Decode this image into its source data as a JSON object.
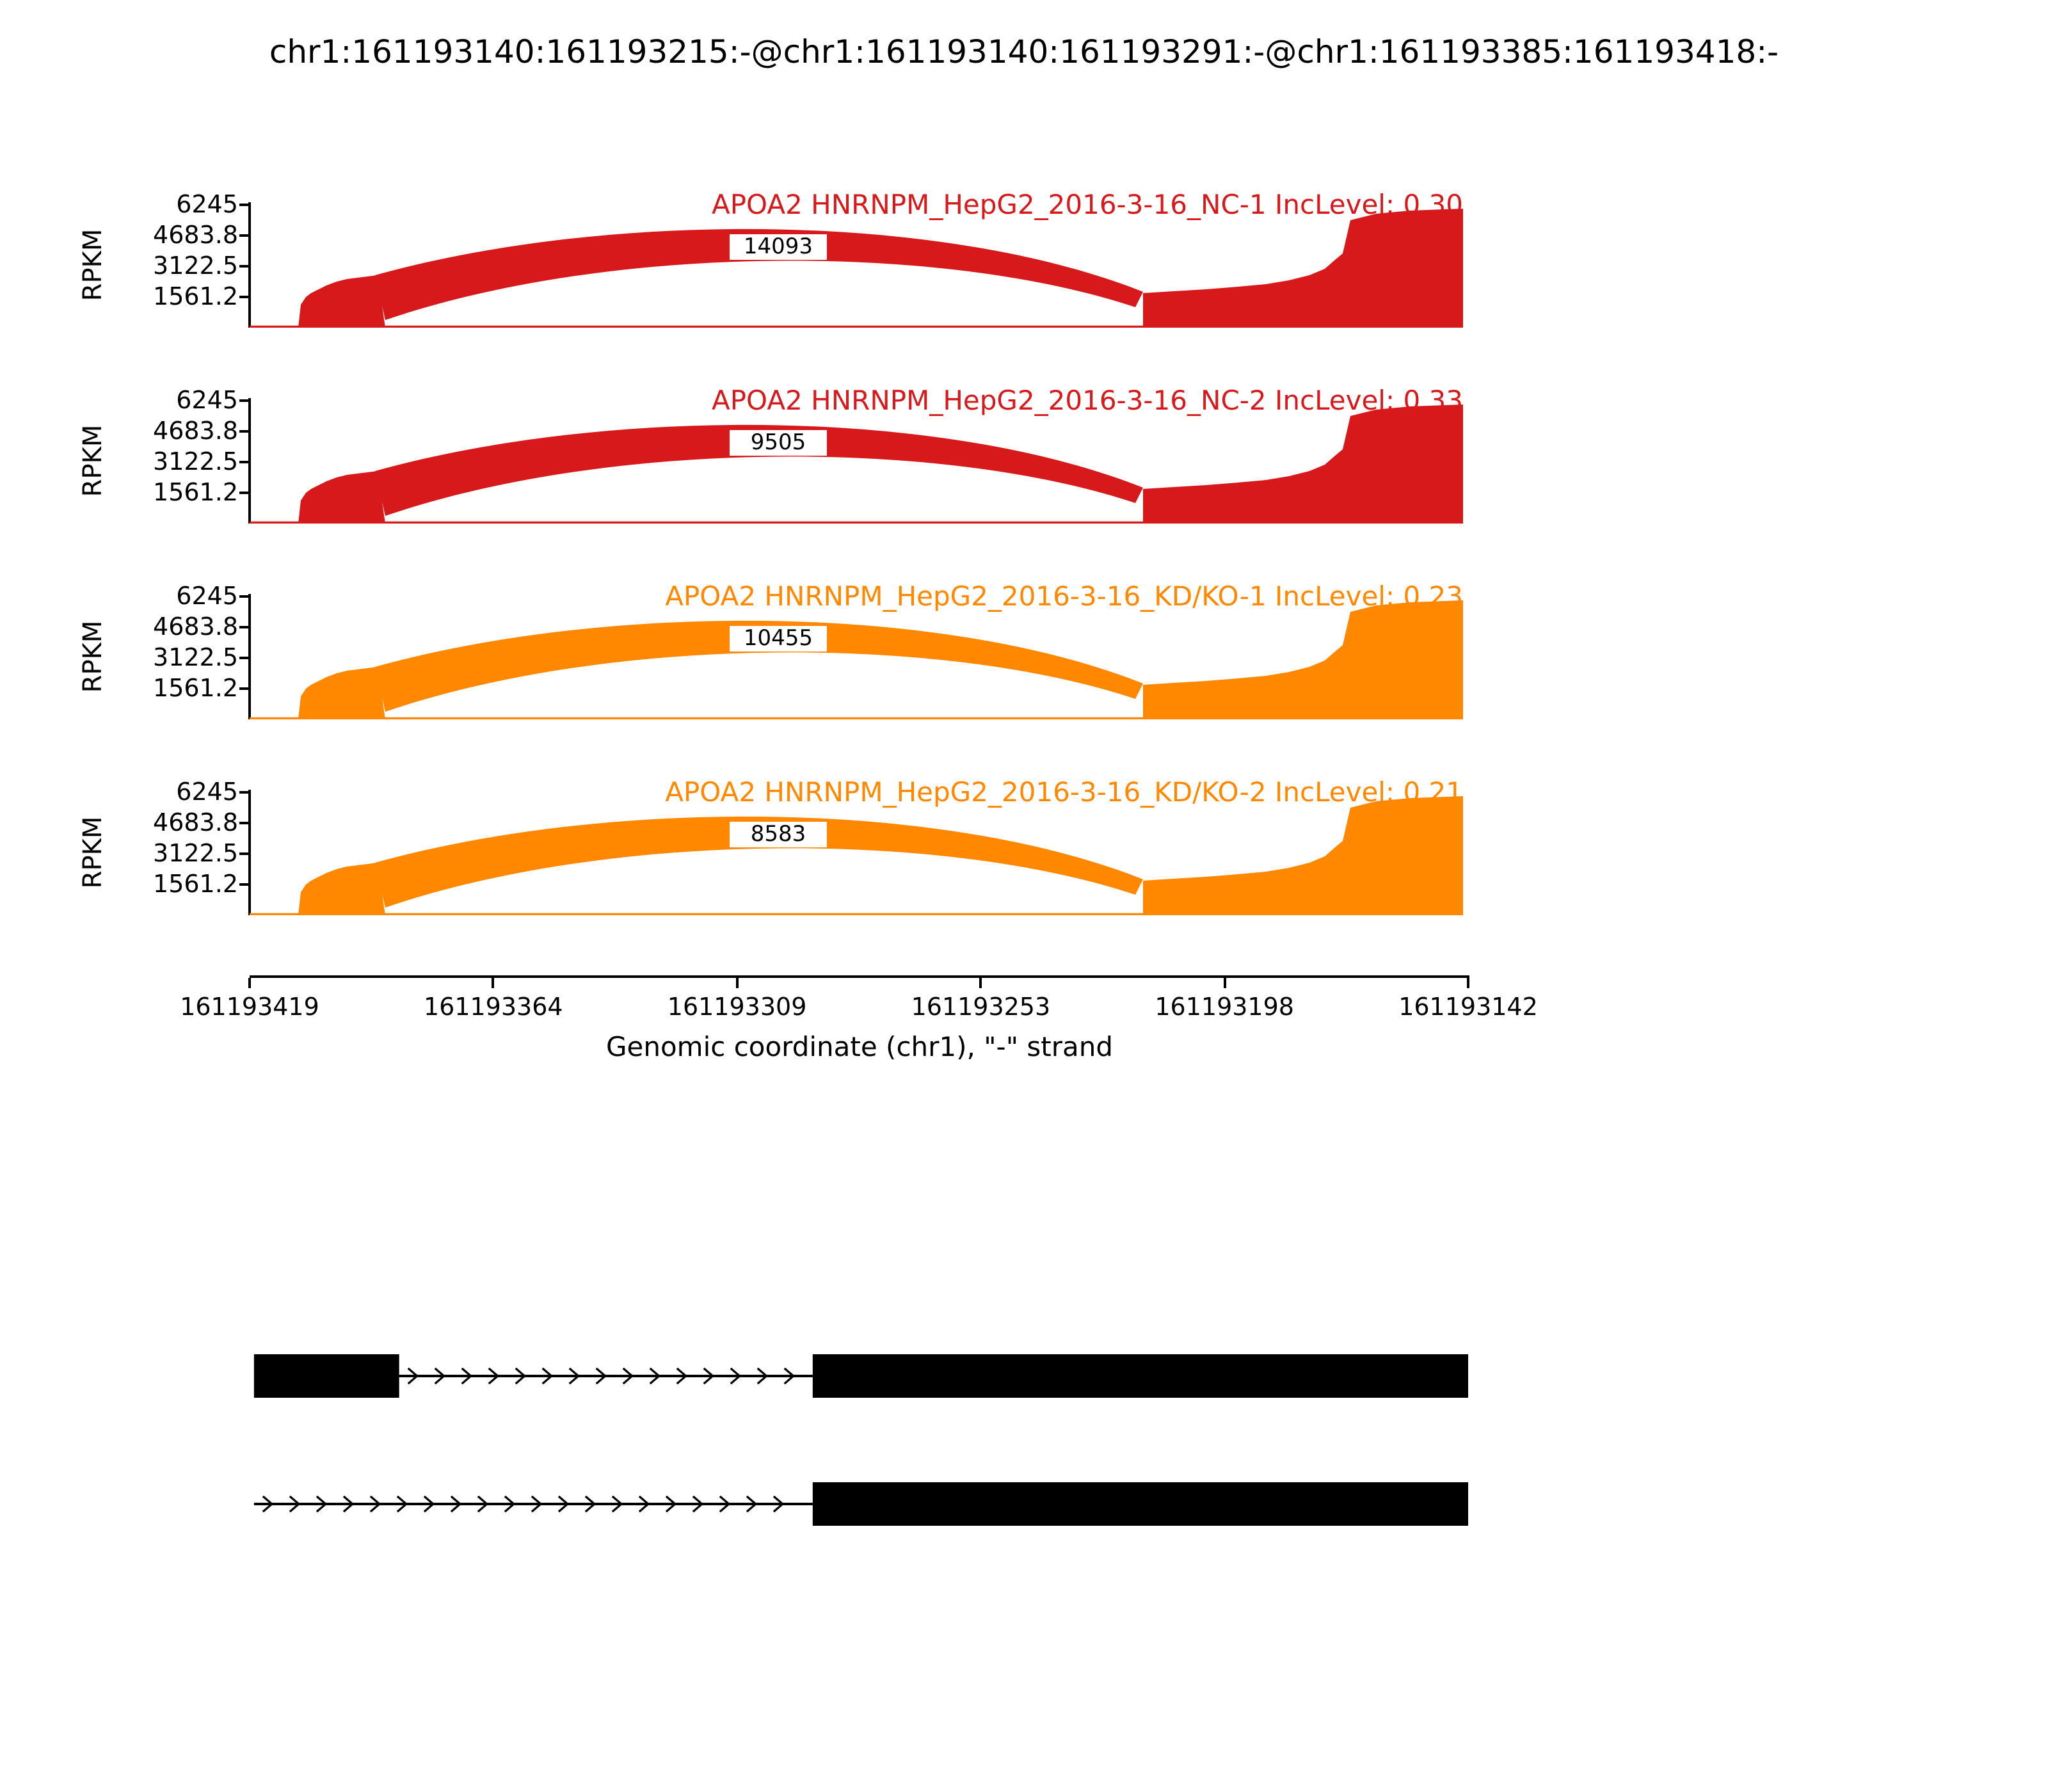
{
  "title": "chr1:161193140:161193215:-@chr1:161193140:161193291:-@chr1:161193385:161193418:-",
  "chart_data": {
    "type": "area",
    "subtype": "sashimi-coverage",
    "ylabel": "RPKM",
    "xlabel": "Genomic coordinate (chr1), \"-\" strand",
    "y_ticks": [
      "6245",
      "4683.8",
      "3122.5",
      "1561.2"
    ],
    "ylim": [
      0,
      6245
    ],
    "x_ticks": [
      "161193419",
      "161193364",
      "161193309",
      "161193253",
      "161193198",
      "161193142"
    ],
    "x_range": [
      161193419,
      161193142
    ],
    "strand": "-",
    "grid": false,
    "legend": "none",
    "tracks": [
      {
        "label": "APOA2 HNRNPM_HepG2_2016-3-16_NC-1 IncLevel: 0.30",
        "inc_level": 0.3,
        "junction_reads": 14093,
        "color": "#d7191c"
      },
      {
        "label": "APOA2 HNRNPM_HepG2_2016-3-16_NC-2 IncLevel: 0.33",
        "inc_level": 0.33,
        "junction_reads": 9505,
        "color": "#d7191c"
      },
      {
        "label": "APOA2 HNRNPM_HepG2_2016-3-16_KD/KO-1 IncLevel: 0.23",
        "inc_level": 0.23,
        "junction_reads": 10455,
        "color": "#ff8800"
      },
      {
        "label": "APOA2 HNRNPM_HepG2_2016-3-16_KD/KO-2 IncLevel: 0.21",
        "inc_level": 0.21,
        "junction_reads": 8583,
        "color": "#ff8800"
      }
    ],
    "isoforms": [
      {
        "exons": [
          [
            161193418,
            161193385
          ],
          [
            161193291,
            161193142
          ]
        ],
        "intron": [
          161193385,
          161193291
        ]
      },
      {
        "exons": [
          [
            161193291,
            161193142
          ]
        ],
        "intron": [
          161193418,
          161193291
        ]
      }
    ],
    "isoform_color": "#000000"
  }
}
